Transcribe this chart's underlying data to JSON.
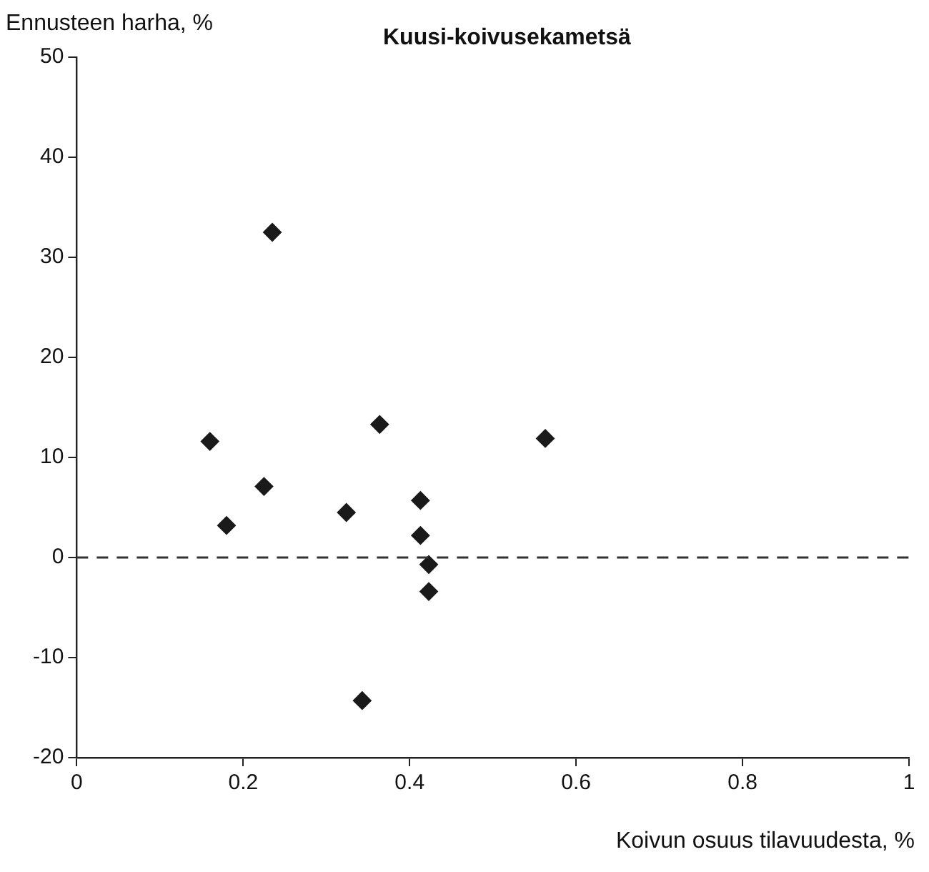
{
  "chart_data": {
    "type": "scatter",
    "title": "Kuusi-koivusekametsä",
    "xlabel": "Koivun osuus tilavuudesta, %",
    "ylabel": "Ennusteen harha, %",
    "x": [
      0.235,
      0.16,
      0.18,
      0.225,
      0.364,
      0.324,
      0.413,
      0.413,
      0.563,
      0.423,
      0.423,
      0.343
    ],
    "values": [
      32.5,
      11.6,
      3.2,
      7.1,
      13.3,
      4.5,
      5.7,
      2.2,
      11.9,
      -0.7,
      -3.4,
      -14.3
    ],
    "color": "#1a1a1a",
    "marker": "diamond",
    "xlim": [
      0,
      1
    ],
    "xticks": [
      0,
      0.2,
      0.4,
      0.6,
      0.8,
      1
    ],
    "ylim": [
      -20,
      50
    ],
    "yticks": [
      -20,
      -10,
      0,
      10,
      20,
      30,
      40,
      50
    ],
    "ref_lines": [
      {
        "axis": "y",
        "value": 0,
        "color": "#333333",
        "line_style": "dashed"
      }
    ],
    "grid": false,
    "legend": false
  }
}
